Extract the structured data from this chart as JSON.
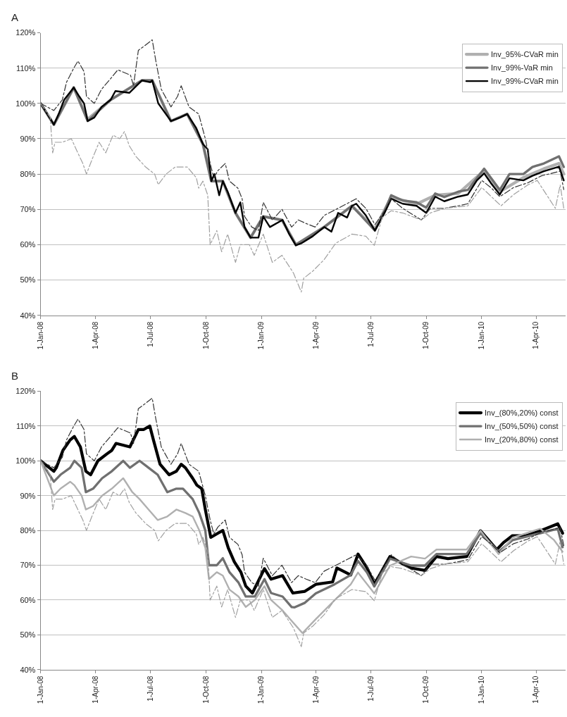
{
  "chart_data": [
    {
      "type": "line",
      "title": "A",
      "xlim": [
        "2008-01-01",
        "2010-05-20"
      ],
      "ylim": [
        40,
        120
      ],
      "xticks": [
        {
          "value": "2008-01-01",
          "label": "1-Jan-08"
        },
        {
          "value": "2008-04-01",
          "label": "1-Apr-08"
        },
        {
          "value": "2008-07-01",
          "label": "1-Jul-08"
        },
        {
          "value": "2008-10-01",
          "label": "1-Oct-08"
        },
        {
          "value": "2009-01-01",
          "label": "1-Jan-09"
        },
        {
          "value": "2009-04-01",
          "label": "1-Apr-09"
        },
        {
          "value": "2009-07-01",
          "label": "1-Jul-09"
        },
        {
          "value": "2009-10-01",
          "label": "1-Oct-09"
        },
        {
          "value": "2010-01-01",
          "label": "1-Jan-10"
        },
        {
          "value": "2010-04-01",
          "label": "1-Apr-10"
        }
      ],
      "yticks": [
        {
          "value": 40,
          "label": "40%"
        },
        {
          "value": 50,
          "label": "50%"
        },
        {
          "value": 60,
          "label": "60%"
        },
        {
          "value": 70,
          "label": "70%"
        },
        {
          "value": 80,
          "label": "80%"
        },
        {
          "value": 90,
          "label": "90%"
        },
        {
          "value": 100,
          "label": "100%"
        },
        {
          "value": 110,
          "label": "110%"
        },
        {
          "value": 120,
          "label": "120%"
        }
      ],
      "grid": "y",
      "legend": "top right",
      "marker": "none",
      "series": [
        {
          "name": "Inv_95%-CVaR min",
          "color": "#b0b0b0",
          "line_style": "solid",
          "x": [
            "2008-01-01",
            "2008-01-23",
            "2008-02-25",
            "2008-03-19",
            "2008-04-26",
            "2008-06-17",
            "2008-07-04",
            "2008-08-04",
            "2008-08-31",
            "2008-09-26",
            "2008-10-10",
            "2008-10-29",
            "2008-11-19",
            "2008-12-14",
            "2009-01-04",
            "2009-02-04",
            "2009-02-27",
            "2009-04-15",
            "2009-05-31",
            "2009-07-08",
            "2009-08-04",
            "2009-09-15",
            "2009-10-16",
            "2009-11-23",
            "2010-01-05",
            "2010-01-31",
            "2010-03-11",
            "2010-04-14",
            "2010-05-09",
            "2010-05-17"
          ],
          "values": [
            100,
            94,
            104.5,
            95.5,
            101,
            106.5,
            106.5,
            95,
            97,
            88.5,
            78,
            78,
            69,
            62,
            68,
            67,
            60,
            65,
            71,
            64.5,
            73.5,
            71.5,
            74,
            74.5,
            81,
            75,
            79,
            81.5,
            83,
            80
          ]
        },
        {
          "name": "Inv_99%-VaR min",
          "color": "#707070",
          "line_style": "solid",
          "x": [
            "2008-01-01",
            "2008-01-23",
            "2008-02-25",
            "2008-03-19",
            "2008-04-26",
            "2008-06-17",
            "2008-07-04",
            "2008-08-04",
            "2008-08-31",
            "2008-09-26",
            "2008-10-10",
            "2008-10-29",
            "2008-11-19",
            "2008-12-14",
            "2009-01-04",
            "2009-02-04",
            "2009-02-27",
            "2009-04-15",
            "2009-05-31",
            "2009-07-08",
            "2009-07-24",
            "2009-08-04",
            "2009-08-23",
            "2009-09-15",
            "2009-10-01",
            "2009-10-16",
            "2009-10-31",
            "2009-11-23",
            "2009-12-09",
            "2010-01-05",
            "2010-01-16",
            "2010-01-31",
            "2010-02-16",
            "2010-03-11",
            "2010-03-26",
            "2010-04-14",
            "2010-05-09",
            "2010-05-17"
          ],
          "values": [
            100,
            94,
            104.5,
            95,
            101,
            106.5,
            106.5,
            95,
            97,
            88.5,
            78,
            78,
            69,
            62,
            68,
            67,
            60,
            65,
            71,
            64,
            69.5,
            74,
            72.5,
            72,
            70.5,
            74.5,
            73.5,
            75,
            75.5,
            81.5,
            79,
            75.5,
            80,
            80,
            82,
            83,
            85,
            82
          ]
        },
        {
          "name": "Inv_99%-CVaR min",
          "color": "#000000",
          "line_style": "solid",
          "x": [
            "2008-01-01",
            "2008-01-23",
            "2008-01-31",
            "2008-02-09",
            "2008-02-25",
            "2008-03-05",
            "2008-03-13",
            "2008-03-19",
            "2008-03-30",
            "2008-04-11",
            "2008-04-26",
            "2008-05-04",
            "2008-05-27",
            "2008-06-17",
            "2008-07-01",
            "2008-07-04",
            "2008-07-14",
            "2008-08-04",
            "2008-08-19",
            "2008-08-31",
            "2008-09-15",
            "2008-09-26",
            "2008-10-04",
            "2008-10-10",
            "2008-10-15",
            "2008-10-23",
            "2008-10-29",
            "2008-11-06",
            "2008-11-19",
            "2008-11-27",
            "2008-12-04",
            "2008-12-14",
            "2008-12-27",
            "2009-01-04",
            "2009-01-15",
            "2009-02-05",
            "2009-02-16",
            "2009-02-27",
            "2009-03-08",
            "2009-03-27",
            "2009-04-15",
            "2009-04-27",
            "2009-05-08",
            "2009-05-23",
            "2009-05-31",
            "2009-06-07",
            "2009-06-23",
            "2009-07-08",
            "2009-07-24",
            "2009-08-04",
            "2009-08-23",
            "2009-09-15",
            "2009-10-01",
            "2009-10-16",
            "2009-10-31",
            "2009-11-23",
            "2009-12-09",
            "2009-12-24",
            "2010-01-05",
            "2010-01-16",
            "2010-01-31",
            "2010-02-16",
            "2010-03-11",
            "2010-03-26",
            "2010-04-14",
            "2010-05-09",
            "2010-05-17"
          ],
          "values": [
            100,
            94,
            97,
            101,
            104.5,
            102,
            100,
            95,
            96,
            99,
            101,
            103.5,
            103,
            106.5,
            106,
            106.5,
            100,
            95,
            96,
            97,
            93,
            88.5,
            87,
            78,
            80,
            74,
            78,
            75,
            69,
            72,
            65,
            62,
            62,
            68,
            65,
            67,
            63,
            59.8,
            60.4,
            62.4,
            65,
            63.7,
            69,
            67.7,
            71,
            71.6,
            68.3,
            64,
            69,
            73,
            71.6,
            71,
            69,
            73.6,
            72.3,
            73.6,
            74.2,
            78.2,
            80.2,
            77.5,
            74.2,
            78.8,
            78.2,
            79.5,
            80.8,
            82.1,
            78.2
          ]
        },
        {
          "color": "#333333",
          "line_style": "dashdot",
          "x": [
            "2008-01-01",
            "2008-01-23",
            "2008-02-06",
            "2008-02-13",
            "2008-02-25",
            "2008-03-03",
            "2008-03-13",
            "2008-03-17",
            "2008-03-30",
            "2008-04-11",
            "2008-04-26",
            "2008-05-08",
            "2008-05-29",
            "2008-06-03",
            "2008-06-11",
            "2008-06-19",
            "2008-07-04",
            "2008-07-10",
            "2008-07-19",
            "2008-08-04",
            "2008-08-15",
            "2008-08-21",
            "2008-09-03",
            "2008-09-19",
            "2008-09-30",
            "2008-10-08",
            "2008-10-14",
            "2008-10-21",
            "2008-11-02",
            "2008-11-09",
            "2008-11-23",
            "2008-11-30",
            "2008-12-04",
            "2008-12-16",
            "2008-12-27",
            "2009-01-04",
            "2009-01-19",
            "2009-02-04",
            "2009-02-20",
            "2009-03-03",
            "2009-03-16",
            "2009-03-31",
            "2009-04-15",
            "2009-05-08",
            "2009-06-07",
            "2009-06-23",
            "2009-07-08",
            "2009-07-24",
            "2009-08-04",
            "2009-08-23",
            "2009-09-23",
            "2009-10-08",
            "2009-10-31",
            "2009-11-23",
            "2009-12-09",
            "2010-01-01",
            "2010-01-16",
            "2010-01-31",
            "2010-02-23",
            "2010-03-18",
            "2010-04-10",
            "2010-05-11",
            "2010-05-17"
          ],
          "values": [
            100,
            98,
            101,
            106,
            110,
            112,
            109,
            102,
            100,
            104,
            107,
            109.5,
            108,
            105,
            115,
            116,
            118,
            112,
            104,
            99,
            102,
            105,
            99,
            97,
            90,
            83,
            79,
            81,
            83,
            78,
            76,
            73,
            68,
            65,
            64,
            72,
            67,
            70,
            65,
            67,
            66,
            65,
            68.3,
            70.3,
            73,
            70.3,
            65.7,
            69.6,
            73,
            70.3,
            67,
            70.3,
            70.3,
            71,
            71.6,
            78.2,
            76.2,
            73.6,
            76.2,
            77.5,
            79.5,
            80.8,
            75.6
          ]
        },
        {
          "color": "#a0a0a0",
          "line_style": "dashdot",
          "x": [
            "2008-01-01",
            "2008-01-17",
            "2008-01-21",
            "2008-01-25",
            "2008-02-06",
            "2008-02-21",
            "2008-02-29",
            "2008-03-11",
            "2008-03-17",
            "2008-03-26",
            "2008-04-07",
            "2008-04-18",
            "2008-04-30",
            "2008-05-11",
            "2008-05-19",
            "2008-05-27",
            "2008-06-07",
            "2008-06-23",
            "2008-07-08",
            "2008-07-14",
            "2008-07-27",
            "2008-08-11",
            "2008-08-31",
            "2008-09-15",
            "2008-09-19",
            "2008-09-26",
            "2008-10-04",
            "2008-10-08",
            "2008-10-19",
            "2008-10-27",
            "2008-11-06",
            "2008-11-19",
            "2008-11-27",
            "2008-12-12",
            "2008-12-20",
            "2009-01-04",
            "2009-01-19",
            "2009-02-04",
            "2009-02-23",
            "2009-03-08",
            "2009-03-12",
            "2009-03-27",
            "2009-04-15",
            "2009-05-04",
            "2009-05-31",
            "2009-06-23",
            "2009-07-07",
            "2009-07-20",
            "2009-08-04",
            "2009-08-23",
            "2009-09-23",
            "2009-10-08",
            "2009-10-31",
            "2009-12-09",
            "2010-01-01",
            "2010-02-02",
            "2010-02-23",
            "2010-03-18",
            "2010-04-03",
            "2010-05-03",
            "2010-05-11",
            "2010-05-17"
          ],
          "values": [
            100,
            96,
            86,
            89,
            89,
            90,
            87,
            83,
            80,
            84,
            89,
            86,
            91,
            90,
            92,
            88,
            85,
            82,
            80,
            77,
            80,
            82,
            82,
            79,
            76,
            78,
            74,
            60,
            64,
            58,
            63,
            55,
            60,
            60,
            57,
            63,
            55,
            57,
            52,
            46.6,
            50.5,
            52.5,
            55.8,
            60.4,
            63,
            62.4,
            59.8,
            67.7,
            69.6,
            69,
            67,
            69,
            70.3,
            71,
            76.2,
            71,
            74.2,
            76.9,
            78.2,
            70.3,
            76.9,
            70.3
          ]
        }
      ]
    },
    {
      "type": "line",
      "title": "B",
      "xlim": [
        "2008-01-01",
        "2010-05-20"
      ],
      "ylim": [
        40,
        120
      ],
      "xticks": [
        {
          "value": "2008-01-01",
          "label": "1-Jan-08"
        },
        {
          "value": "2008-04-01",
          "label": "1-Apr-08"
        },
        {
          "value": "2008-07-01",
          "label": "1-Jul-08"
        },
        {
          "value": "2008-10-01",
          "label": "1-Oct-08"
        },
        {
          "value": "2009-01-01",
          "label": "1-Jan-09"
        },
        {
          "value": "2009-04-01",
          "label": "1-Apr-09"
        },
        {
          "value": "2009-07-01",
          "label": "1-Jul-09"
        },
        {
          "value": "2009-10-01",
          "label": "1-Oct-09"
        },
        {
          "value": "2010-01-01",
          "label": "1-Jan-10"
        },
        {
          "value": "2010-04-01",
          "label": "1-Apr-10"
        }
      ],
      "yticks": [
        {
          "value": 40,
          "label": "40%"
        },
        {
          "value": 50,
          "label": "50%"
        },
        {
          "value": 60,
          "label": "60%"
        },
        {
          "value": 70,
          "label": "70%"
        },
        {
          "value": 80,
          "label": "80%"
        },
        {
          "value": 90,
          "label": "90%"
        },
        {
          "value": 100,
          "label": "100%"
        },
        {
          "value": 110,
          "label": "110%"
        },
        {
          "value": 120,
          "label": "120%"
        }
      ],
      "grid": "y",
      "legend": "top right",
      "marker": "none",
      "series": [
        {
          "name": "Inv_(80%,20%) const",
          "color": "#000000",
          "line_style": "solid",
          "x": [
            "2008-01-01",
            "2008-01-23",
            "2008-01-27",
            "2008-02-07",
            "2008-02-19",
            "2008-02-26",
            "2008-03-07",
            "2008-03-16",
            "2008-03-24",
            "2008-04-05",
            "2008-04-20",
            "2008-04-28",
            "2008-05-05",
            "2008-05-28",
            "2008-06-11",
            "2008-06-20",
            "2008-06-30",
            "2008-07-06",
            "2008-07-17",
            "2008-08-01",
            "2008-08-13",
            "2008-08-21",
            "2008-08-28",
            "2008-09-09",
            "2008-09-16",
            "2008-09-24",
            "2008-09-30",
            "2008-10-09",
            "2008-10-19",
            "2008-10-29",
            "2008-11-07",
            "2008-11-17",
            "2008-11-28",
            "2008-12-06",
            "2008-12-17",
            "2009-01-06",
            "2009-01-17",
            "2009-02-05",
            "2009-02-22",
            "2009-03-14",
            "2009-04-01",
            "2009-04-29",
            "2009-05-06",
            "2009-05-29",
            "2009-06-10",
            "2009-06-25",
            "2009-07-07",
            "2009-08-02",
            "2009-08-22",
            "2009-09-06",
            "2009-09-29",
            "2009-10-18",
            "2009-11-06",
            "2009-12-07",
            "2009-12-30",
            "2010-01-26",
            "2010-02-06",
            "2010-02-21",
            "2010-03-16",
            "2010-04-08",
            "2010-05-07",
            "2010-05-15"
          ],
          "values": [
            100,
            97,
            98,
            103,
            106,
            107,
            104,
            97,
            96,
            100,
            102,
            103,
            105,
            104,
            109,
            109,
            110,
            106,
            99,
            96,
            97,
            99,
            98,
            95,
            93,
            92,
            86,
            78,
            79,
            80,
            75,
            71,
            68,
            64,
            62,
            69,
            66,
            67,
            62,
            62.5,
            64.5,
            65.2,
            69.2,
            67.2,
            73.2,
            69.2,
            64.5,
            72.5,
            70.5,
            69.2,
            68.5,
            72.5,
            71.9,
            72.5,
            79.9,
            74.5,
            76.5,
            78.5,
            78.5,
            79.9,
            81.9,
            79.2
          ]
        },
        {
          "name": "Inv_(50%,50%) const",
          "color": "#707070",
          "line_style": "solid",
          "x": [
            "2008-01-01",
            "2008-01-23",
            "2008-02-03",
            "2008-02-19",
            "2008-02-26",
            "2008-03-09",
            "2008-03-16",
            "2008-03-28",
            "2008-04-12",
            "2008-04-28",
            "2008-05-17",
            "2008-05-28",
            "2008-06-13",
            "2008-06-28",
            "2008-07-13",
            "2008-07-29",
            "2008-08-13",
            "2008-08-24",
            "2008-09-09",
            "2008-09-20",
            "2008-09-30",
            "2008-10-06",
            "2008-10-19",
            "2008-10-29",
            "2008-11-09",
            "2008-11-24",
            "2008-12-06",
            "2008-12-21",
            "2009-01-06",
            "2009-01-17",
            "2009-02-05",
            "2009-02-20",
            "2009-02-25",
            "2009-03-14",
            "2009-04-01",
            "2009-05-02",
            "2009-05-29",
            "2009-06-10",
            "2009-06-25",
            "2009-07-07",
            "2009-08-02",
            "2009-09-06",
            "2009-09-29",
            "2009-10-18",
            "2009-12-07",
            "2009-12-30",
            "2010-01-29",
            "2010-02-21",
            "2010-04-08",
            "2010-05-07",
            "2010-05-15"
          ],
          "values": [
            100,
            94,
            96,
            98,
            100,
            98,
            91,
            92,
            95,
            97,
            100,
            98,
            100,
            98,
            96,
            91,
            92,
            92,
            89,
            85,
            80,
            70,
            70,
            72,
            68,
            65,
            61,
            61,
            66,
            62,
            61,
            58,
            57.9,
            59.2,
            61.9,
            64.5,
            67.2,
            71.2,
            67.9,
            63.9,
            71.9,
            69.9,
            69.9,
            73.2,
            73.2,
            79.2,
            73.9,
            77.2,
            79.2,
            80.5,
            75.2
          ]
        },
        {
          "name": "Inv_(20%,80%) const",
          "color": "#b0b0b0",
          "line_style": "solid",
          "x": [
            "2008-01-01",
            "2008-01-23",
            "2008-02-03",
            "2008-02-19",
            "2008-02-26",
            "2008-03-09",
            "2008-03-16",
            "2008-03-28",
            "2008-04-12",
            "2008-04-28",
            "2008-05-17",
            "2008-06-01",
            "2008-06-13",
            "2008-06-28",
            "2008-07-13",
            "2008-07-29",
            "2008-08-13",
            "2008-08-28",
            "2008-09-09",
            "2008-09-20",
            "2008-09-30",
            "2008-10-06",
            "2008-10-19",
            "2008-10-29",
            "2008-11-09",
            "2008-11-24",
            "2008-12-06",
            "2008-12-21",
            "2009-01-06",
            "2009-01-17",
            "2009-02-05",
            "2009-02-20",
            "2009-03-10",
            "2009-04-01",
            "2009-05-02",
            "2009-05-29",
            "2009-06-10",
            "2009-07-07",
            "2009-08-02",
            "2009-09-06",
            "2009-09-29",
            "2009-10-18",
            "2009-12-07",
            "2009-12-30",
            "2010-01-29",
            "2010-02-21",
            "2010-04-08",
            "2010-05-01",
            "2010-05-15"
          ],
          "values": [
            100,
            90,
            92,
            94,
            93,
            90,
            86,
            87,
            90,
            92,
            95,
            91,
            89,
            86,
            83,
            84,
            86,
            85,
            84,
            80,
            75,
            66,
            68,
            67,
            63,
            61,
            58,
            60,
            64,
            60,
            57,
            54,
            50.5,
            54.5,
            59.9,
            64.5,
            67.9,
            61.9,
            69.9,
            72.5,
            71.9,
            74.5,
            74.5,
            79.9,
            73.2,
            77.9,
            80.5,
            77.2,
            73.9
          ]
        },
        {
          "color": "#333333",
          "line_style": "dashdot",
          "x": [
            "2008-01-01",
            "2008-01-23",
            "2008-02-06",
            "2008-02-13",
            "2008-02-25",
            "2008-03-03",
            "2008-03-13",
            "2008-03-17",
            "2008-03-30",
            "2008-04-11",
            "2008-04-26",
            "2008-05-08",
            "2008-05-29",
            "2008-06-03",
            "2008-06-11",
            "2008-06-19",
            "2008-07-04",
            "2008-07-10",
            "2008-07-19",
            "2008-08-04",
            "2008-08-15",
            "2008-08-21",
            "2008-09-03",
            "2008-09-19",
            "2008-09-30",
            "2008-10-08",
            "2008-10-14",
            "2008-10-21",
            "2008-11-02",
            "2008-11-09",
            "2008-11-23",
            "2008-11-30",
            "2008-12-04",
            "2008-12-16",
            "2008-12-27",
            "2009-01-04",
            "2009-01-19",
            "2009-02-04",
            "2009-02-20",
            "2009-03-03",
            "2009-03-16",
            "2009-03-31",
            "2009-04-15",
            "2009-05-08",
            "2009-06-07",
            "2009-06-23",
            "2009-07-08",
            "2009-07-24",
            "2009-08-04",
            "2009-08-23",
            "2009-09-23",
            "2009-10-08",
            "2009-10-31",
            "2009-11-23",
            "2009-12-09",
            "2010-01-01",
            "2010-01-16",
            "2010-01-31",
            "2010-02-23",
            "2010-03-18",
            "2010-04-10",
            "2010-05-11",
            "2010-05-17"
          ],
          "values": [
            100,
            98,
            101,
            106,
            110,
            112,
            109,
            102,
            100,
            104,
            107,
            109.5,
            108,
            105,
            115,
            116,
            118,
            112,
            104,
            99,
            102,
            105,
            99,
            97,
            90,
            83,
            79,
            81,
            83,
            78,
            76,
            73,
            68,
            65,
            64,
            72,
            67,
            70,
            65,
            67,
            66,
            65,
            68.3,
            70.3,
            73,
            70.3,
            65.7,
            69.6,
            73,
            70.3,
            67,
            70.3,
            70.3,
            71,
            71.6,
            78.2,
            76.2,
            73.6,
            76.2,
            77.5,
            79.5,
            80.8,
            75.6
          ]
        },
        {
          "color": "#a0a0a0",
          "line_style": "dashdot",
          "x": [
            "2008-01-01",
            "2008-01-17",
            "2008-01-21",
            "2008-01-25",
            "2008-02-06",
            "2008-02-21",
            "2008-02-29",
            "2008-03-11",
            "2008-03-17",
            "2008-03-26",
            "2008-04-07",
            "2008-04-18",
            "2008-04-30",
            "2008-05-11",
            "2008-05-19",
            "2008-05-27",
            "2008-06-07",
            "2008-06-23",
            "2008-07-08",
            "2008-07-14",
            "2008-07-27",
            "2008-08-11",
            "2008-08-31",
            "2008-09-15",
            "2008-09-19",
            "2008-09-26",
            "2008-10-04",
            "2008-10-08",
            "2008-10-19",
            "2008-10-27",
            "2008-11-06",
            "2008-11-19",
            "2008-11-27",
            "2008-12-12",
            "2008-12-20",
            "2009-01-04",
            "2009-01-19",
            "2009-02-04",
            "2009-02-23",
            "2009-03-08",
            "2009-03-12",
            "2009-03-27",
            "2009-04-15",
            "2009-05-04",
            "2009-05-31",
            "2009-06-23",
            "2009-07-07",
            "2009-07-20",
            "2009-08-04",
            "2009-08-23",
            "2009-09-23",
            "2009-10-08",
            "2009-10-31",
            "2009-12-09",
            "2010-01-01",
            "2010-02-02",
            "2010-02-23",
            "2010-03-18",
            "2010-04-03",
            "2010-05-03",
            "2010-05-11",
            "2010-05-17"
          ],
          "values": [
            100,
            96,
            86,
            89,
            89,
            90,
            87,
            83,
            80,
            84,
            89,
            86,
            91,
            90,
            92,
            88,
            85,
            82,
            80,
            77,
            80,
            82,
            82,
            79,
            76,
            78,
            74,
            60,
            64,
            58,
            63,
            55,
            60,
            60,
            57,
            63,
            55,
            57,
            52,
            46.6,
            50.5,
            52.5,
            55.8,
            60.4,
            63,
            62.4,
            59.8,
            67.7,
            69.6,
            69,
            67,
            69,
            70.3,
            71,
            76.2,
            71,
            74.2,
            76.9,
            78.2,
            70.3,
            76.9,
            70.3
          ]
        }
      ]
    }
  ]
}
